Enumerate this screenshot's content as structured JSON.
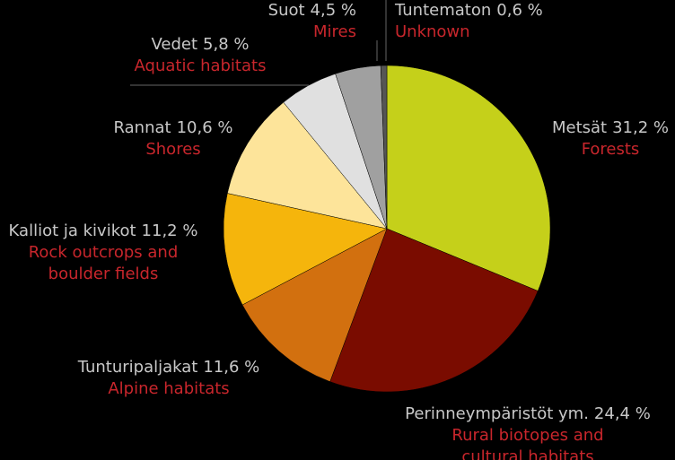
{
  "chart_data": {
    "type": "pie",
    "categories": [
      "Metsät",
      "Perinneympäristöt ym.",
      "Tunturipaljakat",
      "Kalliot ja kivikot",
      "Rannat",
      "Vedet",
      "Suot",
      "Tuntematon"
    ],
    "values": [
      31.2,
      24.4,
      11.6,
      11.2,
      10.6,
      5.8,
      4.5,
      0.6
    ],
    "value_labels": [
      "31,2 %",
      "24,4 %",
      "11,6 %",
      "11,2 %",
      "10,6 %",
      "5,8 %",
      "4,5 %",
      "0,6 %"
    ],
    "translations": [
      [
        "Forests"
      ],
      [
        "Rural biotopes and",
        "cultural habitats"
      ],
      [
        "Alpine habitats"
      ],
      [
        "Rock outcrops and",
        "boulder fields"
      ],
      [
        "Shores"
      ],
      [
        "Aquatic habitats"
      ],
      [
        "Mires"
      ],
      [
        "Unknown"
      ]
    ],
    "colors": [
      "#c5d01a",
      "#7a0c00",
      "#d2700f",
      "#f5b50c",
      "#fde49a",
      "#e0e0e0",
      "#a0a0a0",
      "#555555"
    ]
  }
}
